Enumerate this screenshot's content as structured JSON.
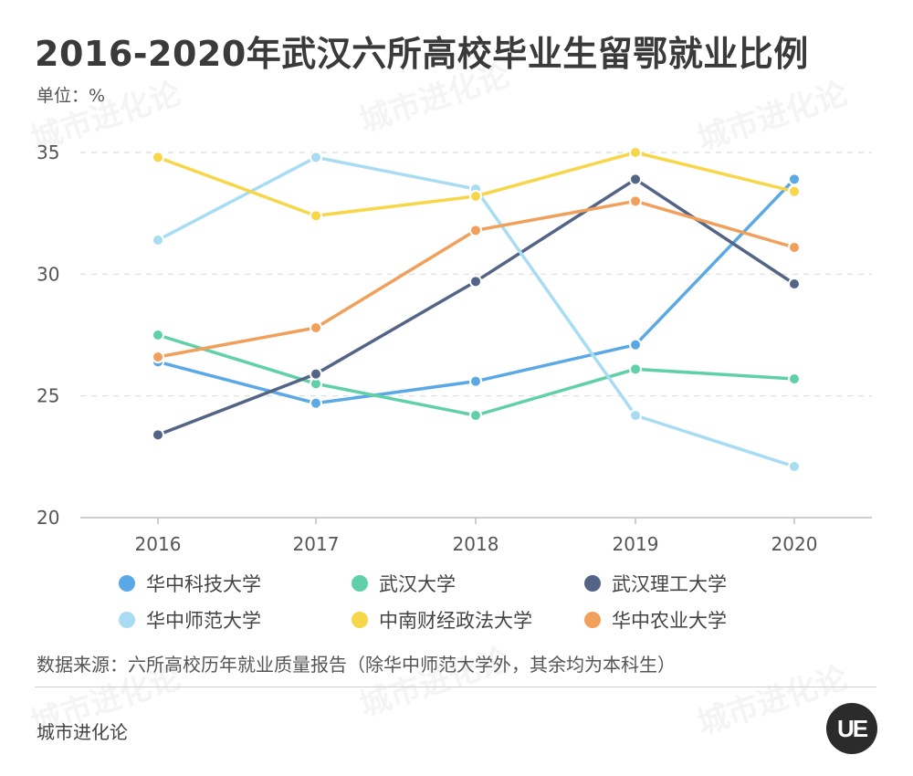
{
  "title": "2016-2020年武汉六所高校毕业生留鄂就业比例",
  "unit_label": "单位：%",
  "source_note": "数据来源：六所高校历年就业质量报告（除华中师范大学外，其余均为本科生）",
  "brand": "城市进化论",
  "logo_text": "UE",
  "chart_data": {
    "type": "line",
    "x": [
      "2016",
      "2017",
      "2018",
      "2019",
      "2020"
    ],
    "ylim": [
      20,
      35
    ],
    "yticks": [
      20,
      25,
      30,
      35
    ],
    "grid": true,
    "legend_position": "bottom",
    "series": [
      {
        "name": "华中科技大学",
        "color": "#5aa9e6",
        "values": [
          26.4,
          24.7,
          25.6,
          27.1,
          33.9
        ]
      },
      {
        "name": "武汉大学",
        "color": "#5fd0a8",
        "values": [
          27.5,
          25.5,
          24.2,
          26.1,
          25.7
        ]
      },
      {
        "name": "武汉理工大学",
        "color": "#536487",
        "values": [
          23.4,
          25.9,
          29.7,
          33.9,
          29.6
        ]
      },
      {
        "name": "华中师范大学",
        "color": "#a8dcf3",
        "values": [
          31.4,
          34.8,
          33.5,
          24.2,
          22.1
        ]
      },
      {
        "name": "中南财经政法大学",
        "color": "#f7d64a",
        "values": [
          34.8,
          32.4,
          33.2,
          35.0,
          33.4
        ]
      },
      {
        "name": "华中农业大学",
        "color": "#f1a05b",
        "values": [
          26.6,
          27.8,
          31.8,
          33.0,
          31.1
        ]
      }
    ]
  }
}
